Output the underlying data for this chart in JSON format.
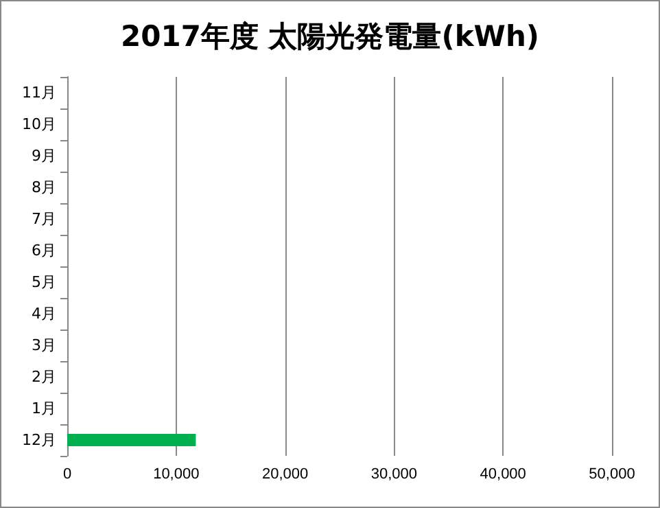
{
  "chart_data": {
    "type": "bar",
    "orientation": "horizontal",
    "title": "2017年度 太陽光発電量(kWh)",
    "categories": [
      "11月",
      "10月",
      "9月",
      "8月",
      "7月",
      "6月",
      "5月",
      "4月",
      "3月",
      "2月",
      "1月",
      "12月"
    ],
    "values": [
      0,
      0,
      0,
      0,
      0,
      0,
      0,
      0,
      0,
      0,
      0,
      11800
    ],
    "color": "#00b050",
    "xlim": [
      0,
      50000
    ],
    "xticks": [
      0,
      {
        "value": 10000,
        "label": "10,000"
      },
      {
        "value": 20000,
        "label": "20,000"
      },
      {
        "value": 30000,
        "label": "30,000"
      },
      {
        "value": 40000,
        "label": "40,000"
      },
      {
        "value": 50000,
        "label": "50,000"
      }
    ],
    "grid": "x"
  }
}
